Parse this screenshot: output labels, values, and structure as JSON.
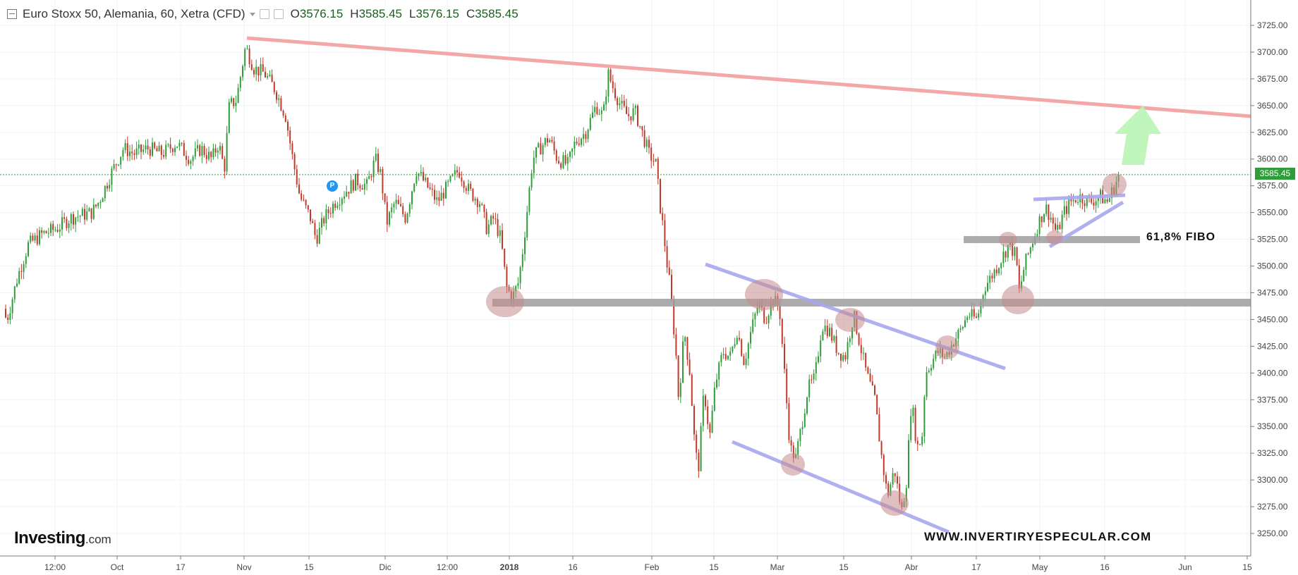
{
  "header": {
    "title": "Euro Stoxx 50, Alemania, 60, Xetra (CFD)",
    "open_label": "O",
    "open_value": "3576.15",
    "high_label": "H",
    "high_value": "3585.45",
    "low_label": "L",
    "low_value": "3576.15",
    "close_label": "C",
    "close_value": "3585.45"
  },
  "brand": {
    "name": "Investing",
    "suffix": ".com"
  },
  "watermark": "WWW.INVERTIRYESPECULAR.COM",
  "annotations": {
    "fibo_label": "61,8% FIBO",
    "event_badge": "P"
  },
  "price_tag": "3585.45",
  "colors": {
    "up_candle": "#2e9d3a",
    "down_candle": "#c0392b",
    "resistance_line": "#f4a7a7",
    "channel_line": "#a8a8f0",
    "support_band": "#9e9e9e",
    "circle": "#c48a8a",
    "target_arrow": "#b9f5b4",
    "last_price_line": "#2e9d3a"
  },
  "chart_data": {
    "type": "candlestick",
    "y_axis": {
      "min": 3237,
      "max": 3737,
      "ticks": [
        "3725.00",
        "3700.00",
        "3675.00",
        "3650.00",
        "3625.00",
        "3600.00",
        "3575.00",
        "3550.00",
        "3525.00",
        "3500.00",
        "3475.00",
        "3450.00",
        "3425.00",
        "3400.00",
        "3375.00",
        "3350.00",
        "3325.00",
        "3300.00",
        "3275.00",
        "3250.00"
      ]
    },
    "x_axis": {
      "labels": [
        "12:00",
        "Oct",
        "17",
        "Nov",
        "15",
        "Dic",
        "12:00",
        "2018",
        "16",
        "Feb",
        "15",
        "Mar",
        "15",
        "Abr",
        "17",
        "May",
        "16",
        "Jun",
        "15"
      ],
      "bold": [
        "2018"
      ]
    },
    "last_price": 3585.45,
    "price_path": [
      [
        0,
        3460
      ],
      [
        10,
        3450
      ],
      [
        25,
        3490
      ],
      [
        40,
        3520
      ],
      [
        60,
        3530
      ],
      [
        80,
        3535
      ],
      [
        100,
        3545
      ],
      [
        130,
        3550
      ],
      [
        140,
        3560
      ],
      [
        160,
        3590
      ],
      [
        175,
        3610
      ],
      [
        190,
        3605
      ],
      [
        210,
        3610
      ],
      [
        230,
        3605
      ],
      [
        250,
        3615
      ],
      [
        270,
        3600
      ],
      [
        285,
        3610
      ],
      [
        300,
        3600
      ],
      [
        310,
        3615
      ],
      [
        318,
        3590
      ],
      [
        325,
        3650
      ],
      [
        335,
        3655
      ],
      [
        348,
        3705
      ],
      [
        360,
        3685
      ],
      [
        375,
        3680
      ],
      [
        390,
        3665
      ],
      [
        405,
        3640
      ],
      [
        415,
        3600
      ],
      [
        425,
        3565
      ],
      [
        440,
        3545
      ],
      [
        448,
        3525
      ],
      [
        460,
        3545
      ],
      [
        475,
        3560
      ],
      [
        490,
        3570
      ],
      [
        505,
        3580
      ],
      [
        520,
        3575
      ],
      [
        532,
        3600
      ],
      [
        540,
        3585
      ],
      [
        548,
        3540
      ],
      [
        560,
        3560
      ],
      [
        575,
        3545
      ],
      [
        590,
        3590
      ],
      [
        605,
        3575
      ],
      [
        620,
        3560
      ],
      [
        635,
        3575
      ],
      [
        650,
        3590
      ],
      [
        665,
        3570
      ],
      [
        680,
        3560
      ],
      [
        690,
        3535
      ],
      [
        700,
        3545
      ],
      [
        710,
        3525
      ],
      [
        718,
        3480
      ],
      [
        726,
        3470
      ],
      [
        735,
        3485
      ],
      [
        742,
        3520
      ],
      [
        755,
        3600
      ],
      [
        765,
        3610
      ],
      [
        778,
        3620
      ],
      [
        790,
        3600
      ],
      [
        805,
        3595
      ],
      [
        815,
        3615
      ],
      [
        830,
        3625
      ],
      [
        845,
        3650
      ],
      [
        855,
        3640
      ],
      [
        862,
        3680
      ],
      [
        870,
        3665
      ],
      [
        880,
        3650
      ],
      [
        890,
        3640
      ],
      [
        900,
        3645
      ],
      [
        910,
        3625
      ],
      [
        920,
        3605
      ],
      [
        930,
        3595
      ],
      [
        935,
        3560
      ],
      [
        940,
        3535
      ],
      [
        945,
        3505
      ],
      [
        950,
        3480
      ],
      [
        958,
        3420
      ],
      [
        962,
        3375
      ],
      [
        970,
        3440
      ],
      [
        978,
        3400
      ],
      [
        985,
        3330
      ],
      [
        990,
        3310
      ],
      [
        998,
        3385
      ],
      [
        1006,
        3340
      ],
      [
        1014,
        3390
      ],
      [
        1025,
        3420
      ],
      [
        1035,
        3415
      ],
      [
        1045,
        3440
      ],
      [
        1055,
        3410
      ],
      [
        1065,
        3440
      ],
      [
        1075,
        3465
      ],
      [
        1085,
        3450
      ],
      [
        1095,
        3470
      ],
      [
        1105,
        3460
      ],
      [
        1112,
        3400
      ],
      [
        1120,
        3330
      ],
      [
        1128,
        3320
      ],
      [
        1136,
        3350
      ],
      [
        1145,
        3385
      ],
      [
        1155,
        3395
      ],
      [
        1165,
        3445
      ],
      [
        1175,
        3440
      ],
      [
        1188,
        3420
      ],
      [
        1198,
        3415
      ],
      [
        1210,
        3455
      ],
      [
        1218,
        3430
      ],
      [
        1228,
        3400
      ],
      [
        1240,
        3375
      ],
      [
        1250,
        3320
      ],
      [
        1258,
        3285
      ],
      [
        1268,
        3310
      ],
      [
        1278,
        3270
      ],
      [
        1285,
        3300
      ],
      [
        1292,
        3375
      ],
      [
        1300,
        3330
      ],
      [
        1307,
        3340
      ],
      [
        1312,
        3400
      ],
      [
        1320,
        3410
      ],
      [
        1330,
        3420
      ],
      [
        1340,
        3415
      ],
      [
        1352,
        3430
      ],
      [
        1362,
        3440
      ],
      [
        1372,
        3455
      ],
      [
        1385,
        3450
      ],
      [
        1395,
        3480
      ],
      [
        1405,
        3490
      ],
      [
        1418,
        3505
      ],
      [
        1430,
        3520
      ],
      [
        1440,
        3510
      ],
      [
        1445,
        3475
      ],
      [
        1452,
        3500
      ],
      [
        1462,
        3520
      ],
      [
        1472,
        3540
      ],
      [
        1482,
        3555
      ],
      [
        1490,
        3545
      ],
      [
        1498,
        3530
      ],
      [
        1508,
        3550
      ],
      [
        1518,
        3560
      ],
      [
        1530,
        3565
      ],
      [
        1545,
        3560
      ],
      [
        1560,
        3565
      ],
      [
        1570,
        3560
      ],
      [
        1580,
        3575
      ],
      [
        1586,
        3585
      ]
    ]
  }
}
